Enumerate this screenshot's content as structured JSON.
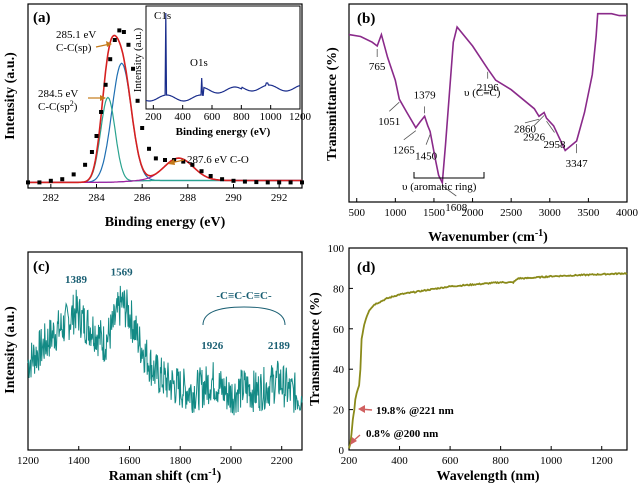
{
  "chart_data": [
    {
      "id": "a",
      "type": "line",
      "panel_label": "(a)",
      "xlabel": "Binding energy (eV)",
      "ylabel": "Intensity (a.u.)",
      "xlim": [
        281,
        293
      ],
      "xticks": [
        282,
        284,
        286,
        288,
        290,
        292
      ],
      "ylim": [
        0,
        1.1
      ],
      "series": [
        {
          "role": "raw",
          "color": "#000000",
          "marker": "square",
          "x": [
            281.0,
            281.5,
            282.0,
            282.5,
            283.0,
            283.5,
            283.8,
            284.0,
            284.2,
            284.4,
            284.6,
            284.8,
            285.0,
            285.2,
            285.4,
            285.6,
            285.8,
            286.0,
            286.3,
            286.6,
            287.0,
            287.4,
            287.8,
            288.2,
            288.6,
            289.0,
            289.5,
            290.0,
            290.5,
            291.0,
            291.5,
            292.0,
            292.5,
            293.0
          ],
          "y": [
            0.01,
            0.01,
            0.02,
            0.03,
            0.06,
            0.12,
            0.2,
            0.3,
            0.45,
            0.62,
            0.78,
            0.9,
            0.96,
            0.95,
            0.87,
            0.72,
            0.52,
            0.35,
            0.22,
            0.16,
            0.15,
            0.15,
            0.14,
            0.12,
            0.08,
            0.05,
            0.03,
            0.02,
            0.015,
            0.012,
            0.01,
            0.01,
            0.01,
            0.01
          ]
        },
        {
          "role": "fit-envelope",
          "color": "#d62020"
        },
        {
          "role": "component",
          "color": "#1f6fb2",
          "center": 285.1,
          "height": 0.74,
          "width": 0.6
        },
        {
          "role": "component",
          "color": "#2aa38f",
          "center": 284.5,
          "height": 0.53,
          "width": 0.45
        },
        {
          "role": "component",
          "color": "#a020a0",
          "center": 287.6,
          "height": 0.14,
          "width": 0.9
        },
        {
          "role": "background",
          "color": "#1a1a9c"
        }
      ],
      "annotations": [
        {
          "text": "285.1 eV",
          "line2": "C-C(sp)"
        },
        {
          "text": "284.5 eV",
          "line2": "C-C(sp",
          "sup": "2",
          "tail": ")"
        },
        {
          "text": "287.6 eV C-O"
        }
      ],
      "inset": {
        "type": "line",
        "xlabel": "Binding energy (eV)",
        "ylabel": "Intensity (a.u.)",
        "xlim": [
          150,
          1200
        ],
        "xticks": [
          200,
          400,
          600,
          800,
          1000,
          1200
        ],
        "ylim": [
          0,
          1.0
        ],
        "color": "#1a2d8c",
        "peaks": [
          {
            "label": "C1s",
            "x": 285,
            "y": 0.95
          },
          {
            "label": "O1s",
            "x": 532,
            "y": 0.3
          }
        ]
      }
    },
    {
      "id": "b",
      "type": "line",
      "panel_label": "(b)",
      "xlabel": "Wavenumber (cm",
      "xlabel_sup": "-1",
      "xlabel_tail": ")",
      "ylabel": "Transmittance (%)",
      "xlim": [
        400,
        4000
      ],
      "xticks": [
        500,
        1000,
        1500,
        2000,
        2500,
        3000,
        3500,
        4000
      ],
      "ylim": [
        0,
        1.0
      ],
      "color": "#8a2a8a",
      "x": [
        400,
        550,
        700,
        765,
        820,
        900,
        1000,
        1051,
        1150,
        1265,
        1320,
        1379,
        1420,
        1450,
        1520,
        1560,
        1608,
        1650,
        1700,
        1750,
        1800,
        2000,
        2196,
        2300,
        2500,
        2800,
        2860,
        2926,
        2958,
        3050,
        3200,
        3347,
        3450,
        3550,
        3600,
        3620,
        3700,
        3800,
        3900,
        4000
      ],
      "y": [
        0.86,
        0.85,
        0.82,
        0.8,
        0.86,
        0.74,
        0.62,
        0.52,
        0.45,
        0.37,
        0.4,
        0.43,
        0.38,
        0.35,
        0.2,
        0.12,
        0.08,
        0.28,
        0.55,
        0.82,
        0.9,
        0.8,
        0.68,
        0.62,
        0.57,
        0.47,
        0.43,
        0.45,
        0.42,
        0.38,
        0.25,
        0.3,
        0.45,
        0.65,
        0.85,
        0.97,
        0.97,
        0.97,
        0.96,
        0.96
      ],
      "annotations": [
        "765",
        "1051",
        "1265",
        "1379",
        "1450",
        "1608",
        "2196",
        "2860",
        "2926",
        "2958",
        "3347"
      ],
      "group_labels": [
        "υ (aromatic ring)",
        "υ (C≡C)"
      ]
    },
    {
      "id": "c",
      "type": "line",
      "panel_label": "(c)",
      "xlabel": "Raman shift (cm",
      "xlabel_sup": "-1",
      "xlabel_tail": ")",
      "ylabel": "Intensity (a.u.)",
      "xlim": [
        1200,
        2280
      ],
      "xticks": [
        1200,
        1400,
        1600,
        1800,
        2000,
        2200
      ],
      "ylim": [
        0,
        1.0
      ],
      "color": "#138a85",
      "x": [
        1200,
        1250,
        1300,
        1350,
        1389,
        1420,
        1460,
        1500,
        1530,
        1569,
        1600,
        1640,
        1700,
        1750,
        1800,
        1850,
        1900,
        1926,
        1960,
        2000,
        2050,
        2100,
        2150,
        2189,
        2230,
        2280
      ],
      "y": [
        0.45,
        0.52,
        0.6,
        0.65,
        0.72,
        0.66,
        0.62,
        0.55,
        0.62,
        0.76,
        0.7,
        0.55,
        0.4,
        0.35,
        0.32,
        0.3,
        0.33,
        0.36,
        0.32,
        0.28,
        0.32,
        0.3,
        0.33,
        0.36,
        0.3,
        0.28
      ],
      "annotations": [
        "1389",
        "1569",
        "1926",
        "2189"
      ],
      "group_labels": [
        "-C≡C-C≡C-"
      ]
    },
    {
      "id": "d",
      "type": "line",
      "panel_label": "(d)",
      "xlabel": "Wavelength (nm)",
      "ylabel": "Transmittance (%)",
      "xlim": [
        200,
        1300
      ],
      "xticks": [
        200,
        400,
        600,
        800,
        1000,
        1200
      ],
      "ylim": [
        0,
        100
      ],
      "yticks": [
        0,
        20,
        40,
        60,
        80,
        100
      ],
      "color": "#8a8a1a",
      "x": [
        200,
        205,
        210,
        215,
        221,
        225,
        230,
        235,
        240,
        245,
        250,
        260,
        270,
        280,
        300,
        350,
        400,
        500,
        600,
        700,
        800,
        850,
        870,
        900,
        1000,
        1100,
        1200,
        1300
      ],
      "y": [
        0.8,
        3,
        8,
        15,
        19.8,
        25,
        28,
        30,
        32,
        40,
        55,
        62,
        66,
        69,
        72,
        75,
        77,
        79,
        81,
        82,
        83,
        83,
        85,
        85,
        86,
        86.5,
        87,
        87.5
      ],
      "annotations": [
        "19.8% @221 nm",
        "0.8% @200 nm"
      ]
    }
  ]
}
